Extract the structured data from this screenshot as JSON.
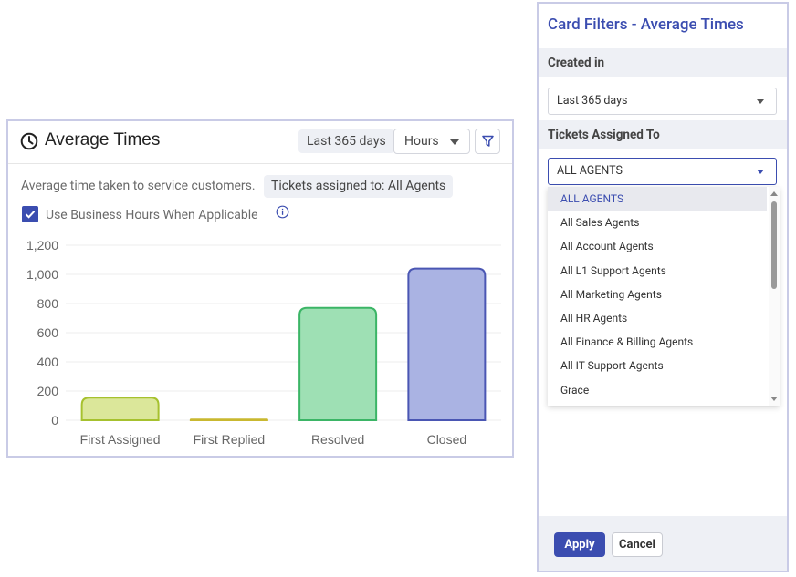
{
  "card": {
    "title": "Average Times",
    "date_range": "Last 365 days",
    "unit_select": "Hours",
    "description": "Average time taken to service customers.",
    "agents_chip": "Tickets assigned to: All Agents",
    "checkbox_label": "Use Business Hours When Applicable",
    "checkbox_checked": true
  },
  "chart_data": {
    "type": "bar",
    "categories": [
      "First Assigned",
      "First Replied",
      "Resolved",
      "Closed"
    ],
    "values": [
      155,
      5,
      770,
      1040
    ],
    "ylim": [
      0,
      1200
    ],
    "yticks": [
      "0",
      "200",
      "400",
      "600",
      "800",
      "1,000",
      "1,200"
    ],
    "grid": true,
    "colors": [
      {
        "fill": "#dbe79a",
        "stroke": "#a6c12e"
      },
      {
        "fill": "#f0e69a",
        "stroke": "#c9b830"
      },
      {
        "fill": "#9ee0b4",
        "stroke": "#3bb566"
      },
      {
        "fill": "#aab3e3",
        "stroke": "#4a56b3"
      }
    ]
  },
  "panel": {
    "title": "Card Filters - Average Times",
    "created_in_label": "Created in",
    "created_in_value": "Last 365 days",
    "assigned_label": "Tickets Assigned To",
    "assigned_value": "ALL AGENTS",
    "options": [
      "ALL AGENTS",
      "All Sales Agents",
      "All Account Agents",
      "All L1 Support Agents",
      "All Marketing Agents",
      "All HR Agents",
      "All Finance & Billing Agents",
      "All IT Support Agents",
      "Grace"
    ],
    "apply_label": "Apply",
    "cancel_label": "Cancel"
  },
  "colors": {
    "accent": "#3b4db0",
    "chip_bg": "#eef0f5",
    "border": "#c9cbe6"
  }
}
